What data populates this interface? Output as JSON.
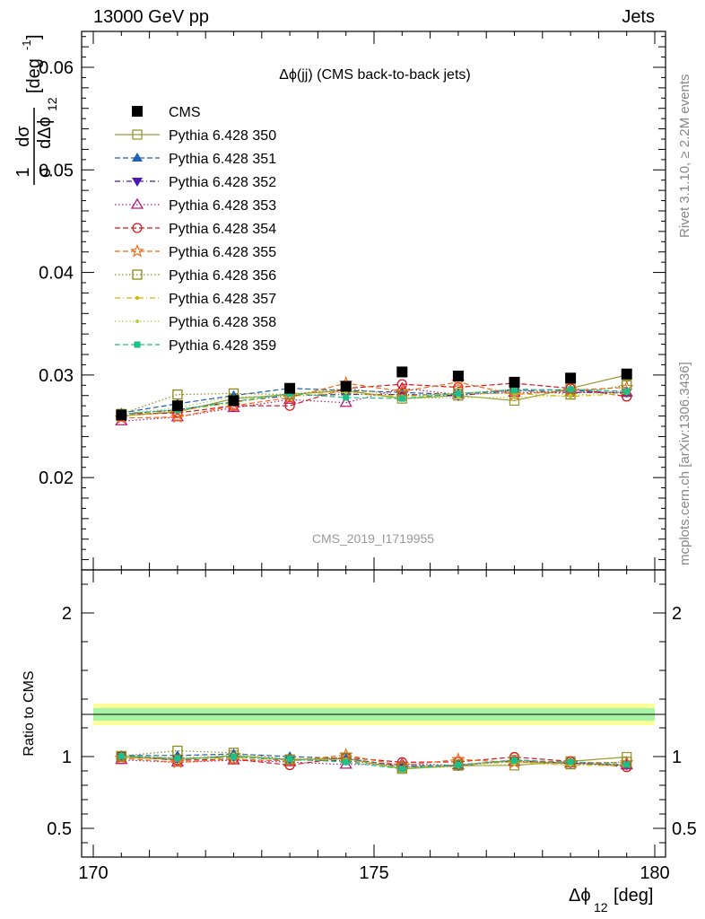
{
  "header": {
    "left": "13000 GeV pp",
    "right": "Jets",
    "side_rivet": "Rivet 3.1.10, ≥ 2.2M events",
    "side_mcplots": "mcplots.cern.ch [arXiv:1306.3436]"
  },
  "plot": {
    "title": "Δϕ(jj) (CMS back-to-back jets)",
    "watermark": "CMS_2019_I1719955",
    "ylabel_top": "1/σ dσ/dΔϕ12 [deg-1]",
    "ylabel_ratio": "Ratio to CMS",
    "xlabel": "Δϕ12 [deg]"
  },
  "chart_data": {
    "type": "line",
    "x": [
      170.5,
      171.5,
      172.5,
      173.5,
      174.5,
      175.5,
      176.5,
      177.5,
      178.5,
      179.5
    ],
    "xlim": [
      170,
      180
    ],
    "ylim": [
      0.011,
      0.0635
    ],
    "ratio_ylim": [
      0.3,
      2.3
    ],
    "xticks": [
      "170",
      "175",
      "180"
    ],
    "yticks": [
      "0.02",
      "0.03",
      "0.04",
      "0.05",
      "0.06"
    ],
    "ratio_yticks": [
      "0.5",
      "1",
      "2"
    ],
    "series": [
      {
        "name": "CMS",
        "color": "#000000",
        "marker": "square-filled",
        "dash": "none",
        "values": [
          0.0261,
          0.027,
          0.0275,
          0.0287,
          0.0289,
          0.0303,
          0.0299,
          0.0293,
          0.0297,
          0.0301
        ]
      },
      {
        "name": "Pythia 6.428 350",
        "color": "#999933",
        "marker": "square-open",
        "dash": "solid",
        "values": [
          0.026,
          0.0264,
          0.0277,
          0.0281,
          0.0285,
          0.0277,
          0.028,
          0.0275,
          0.0287,
          0.03
        ]
      },
      {
        "name": "Pythia 6.428 351",
        "color": "#1f5fb4",
        "marker": "triangle-up-filled",
        "dash": "dashed",
        "values": [
          0.0263,
          0.0272,
          0.028,
          0.0287,
          0.0285,
          0.0283,
          0.0281,
          0.0286,
          0.0285,
          0.0282
        ]
      },
      {
        "name": "Pythia 6.428 352",
        "color": "#4b1aa8",
        "marker": "triangle-down-filled",
        "dash": "dashdot",
        "values": [
          0.0262,
          0.0266,
          0.0274,
          0.028,
          0.0281,
          0.0281,
          0.028,
          0.0285,
          0.0283,
          0.0283
        ]
      },
      {
        "name": "Pythia 6.428 353",
        "color": "#b3197a",
        "marker": "triangle-up-open",
        "dash": "dotted",
        "values": [
          0.0255,
          0.0259,
          0.0268,
          0.0276,
          0.0273,
          0.0287,
          0.0281,
          0.0283,
          0.0283,
          0.0283
        ]
      },
      {
        "name": "Pythia 6.428 354",
        "color": "#d6181e",
        "marker": "circle-open",
        "dash": "dashed",
        "values": [
          0.0262,
          0.0263,
          0.027,
          0.027,
          0.0287,
          0.0291,
          0.0288,
          0.0292,
          0.0287,
          0.0279
        ]
      },
      {
        "name": "Pythia 6.428 355",
        "color": "#f06a1a",
        "marker": "star-open",
        "dash": "dashed",
        "values": [
          0.0258,
          0.0259,
          0.027,
          0.0278,
          0.0292,
          0.0284,
          0.0293,
          0.0281,
          0.0285,
          0.0288
        ]
      },
      {
        "name": "Pythia 6.428 356",
        "color": "#8a8a1a",
        "marker": "square-open",
        "dash": "dotted",
        "values": [
          0.0262,
          0.0281,
          0.0282,
          0.0281,
          0.0287,
          0.028,
          0.0282,
          0.0286,
          0.0281,
          0.029
        ]
      },
      {
        "name": "Pythia 6.428 357",
        "color": "#d6b300",
        "marker": "dot",
        "dash": "dashdot",
        "values": [
          0.026,
          0.0265,
          0.0273,
          0.0282,
          0.0283,
          0.0279,
          0.0282,
          0.0282,
          0.0279,
          0.0282
        ]
      },
      {
        "name": "Pythia 6.428 358",
        "color": "#a8d63a",
        "marker": "dot",
        "dash": "dotted",
        "values": [
          0.0262,
          0.0268,
          0.0279,
          0.0279,
          0.0283,
          0.0277,
          0.0278,
          0.0278,
          0.028,
          0.0284
        ]
      },
      {
        "name": "Pythia 6.428 359",
        "color": "#1fbf8a",
        "marker": "square-filled-small",
        "dash": "dashed",
        "values": [
          0.0262,
          0.0266,
          0.0274,
          0.0282,
          0.0278,
          0.0277,
          0.0282,
          0.0285,
          0.0286,
          0.0284
        ]
      }
    ]
  }
}
